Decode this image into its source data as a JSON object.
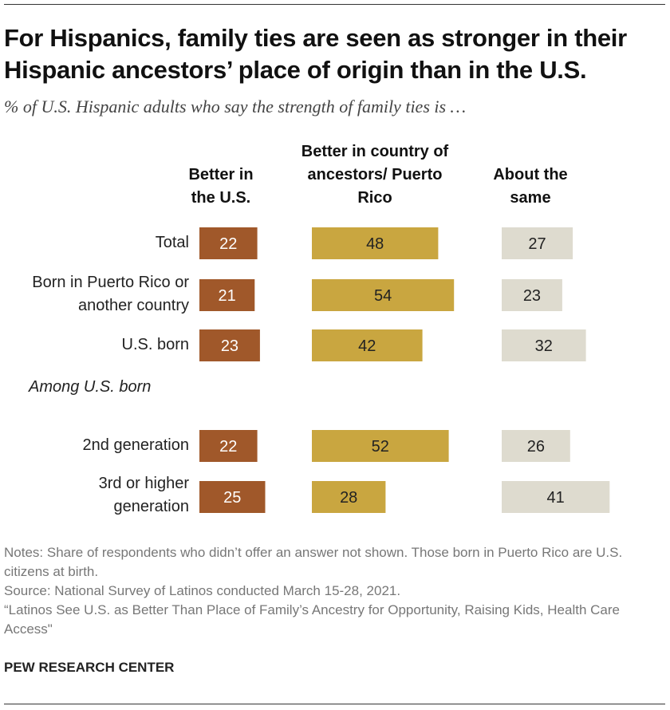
{
  "title": "For Hispanics, family ties are seen as stronger in their Hispanic ancestors’ place of origin than in the U.S.",
  "subtitle": "% of U.S. Hispanic adults who say the strength of family ties is …",
  "group_label": "Among U.S. born",
  "notes": [
    "Notes: Share of respondents who didn’t offer an answer not shown. Those born in Puerto Rico are U.S. citizens at birth.",
    "Source: National Survey of Latinos conducted March 15-28, 2021.",
    "“Latinos See U.S. as Better Than Place of Family’s Ancestry for Opportunity, Raising Kids, Health Care Access\""
  ],
  "brand": "PEW RESEARCH CENTER",
  "colors": {
    "series": [
      "#a0582a",
      "#c9a640",
      "#dedbcf"
    ],
    "label_light": "#ffffff",
    "label_dark": "#222222"
  },
  "chart_data": {
    "type": "bar",
    "orientation": "horizontal",
    "layout": "small-multiples",
    "categories": [
      "Total",
      "Born in Puerto Rico or another country",
      "U.S. born",
      "2nd generation",
      "3rd or higher generation"
    ],
    "category_groups": [
      {
        "label": "",
        "categories": [
          "Total",
          "Born in Puerto Rico or another country",
          "U.S. born"
        ]
      },
      {
        "label": "Among U.S. born",
        "categories": [
          "2nd generation",
          "3rd or higher generation"
        ]
      }
    ],
    "series": [
      {
        "name": "Better in the U.S.",
        "values": [
          22,
          21,
          23,
          22,
          25
        ]
      },
      {
        "name": "Better in country of ancestors/ Puerto Rico",
        "values": [
          48,
          54,
          42,
          52,
          28
        ]
      },
      {
        "name": "About the same",
        "values": [
          27,
          23,
          32,
          26,
          41
        ]
      }
    ],
    "data_labels": true,
    "grid": false,
    "legend": "column headers",
    "unit": "%"
  }
}
